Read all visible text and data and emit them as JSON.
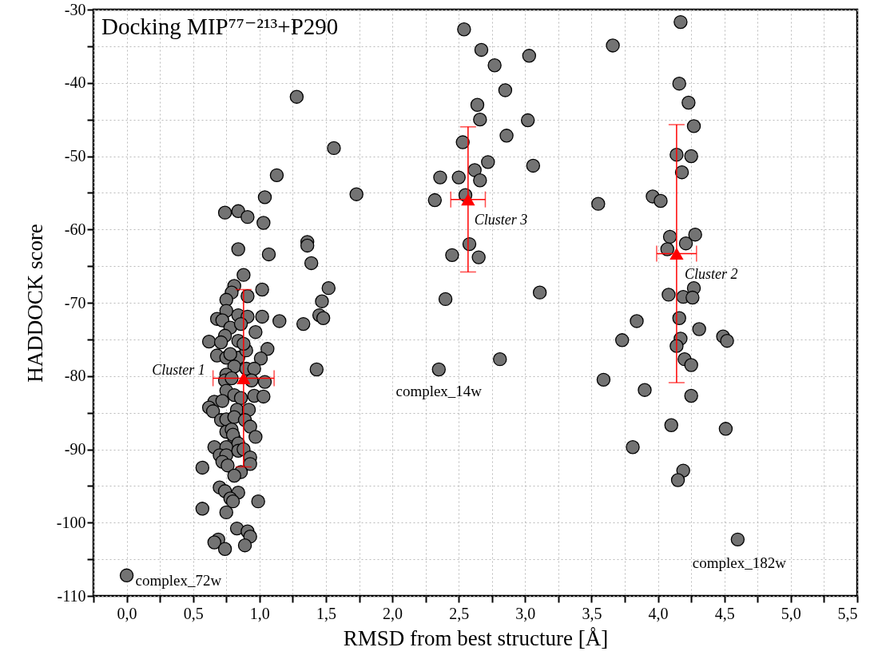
{
  "chart_data": {
    "type": "scatter",
    "title": "Docking MIP⁷⁷⁻²¹³+P290",
    "xlabel": "RMSD from best structure [Å]",
    "ylabel": "HADDOCK score",
    "xlim": [
      -0.25,
      5.5
    ],
    "xticks": [
      {
        "value": -0.25,
        "label": null
      },
      {
        "value": 0,
        "label": "0,0"
      },
      {
        "value": 0.25,
        "label": null
      },
      {
        "value": 0.5,
        "label": "0,5"
      },
      {
        "value": 0.75,
        "label": null
      },
      {
        "value": 1,
        "label": "1,0"
      },
      {
        "value": 1.25,
        "label": null
      },
      {
        "value": 1.5,
        "label": "1,5"
      },
      {
        "value": 1.75,
        "label": null
      },
      {
        "value": 2,
        "label": "2,0"
      },
      {
        "value": 2.25,
        "label": null
      },
      {
        "value": 2.5,
        "label": "2,5"
      },
      {
        "value": 2.75,
        "label": null
      },
      {
        "value": 3,
        "label": "3,0"
      },
      {
        "value": 3.25,
        "label": null
      },
      {
        "value": 3.5,
        "label": "3,5"
      },
      {
        "value": 3.75,
        "label": null
      },
      {
        "value": 4,
        "label": "4,0"
      },
      {
        "value": 4.25,
        "label": null
      },
      {
        "value": 4.5,
        "label": "4,5"
      },
      {
        "value": 4.75,
        "label": null
      },
      {
        "value": 5,
        "label": "5,0"
      },
      {
        "value": 5.25,
        "label": null
      },
      {
        "value": 5.5,
        "label": "5,5"
      }
    ],
    "ylim": [
      -110,
      -30
    ],
    "yticks": [
      -110,
      {
        "value": -105,
        "label": null
      },
      -100,
      {
        "value": -95,
        "label": null
      },
      -90,
      {
        "value": -85,
        "label": null
      },
      -80,
      {
        "value": -75,
        "label": null
      },
      -70,
      {
        "value": -65,
        "label": null
      },
      -60,
      {
        "value": -55,
        "label": null
      },
      -50,
      {
        "value": -45,
        "label": null
      },
      -40,
      {
        "value": -35,
        "label": null
      },
      -30
    ],
    "grid": true,
    "series": [
      {
        "marker": "circle",
        "color": "#737373",
        "x": [
          1.28,
          1.56,
          1.13,
          1.73,
          1.04,
          0.74,
          0.84,
          0.91,
          1.03,
          1.36,
          1.36,
          0.84,
          1.07,
          1.39,
          0.88,
          0.81,
          1.02,
          1.52,
          0.79,
          0.91,
          0.75,
          1.47,
          0.75,
          0.68,
          0.72,
          0.84,
          0.91,
          1.02,
          1.15,
          1.33,
          1.45,
          1.48,
          0.78,
          0.97,
          0.86,
          0.74,
          0.62,
          0.71,
          0.84,
          1.06,
          1.43,
          0.68,
          0.75,
          0.84,
          1.01,
          0.78,
          0.9,
          0.88,
          0.81,
          0.9,
          0.96,
          0.75,
          0.74,
          1.04,
          0.94,
          0.79,
          0.75,
          0.66,
          0.62,
          0.65,
          0.72,
          0.81,
          0.86,
          0.96,
          1.03,
          0.83,
          0.92,
          0.71,
          0.75,
          0.81,
          0.89,
          0.93,
          0.75,
          0.79,
          0.97,
          0.81,
          0.8,
          0.84,
          0.66,
          0.75,
          0.7,
          0.75,
          0.84,
          0.88,
          0.93,
          0.93,
          0.72,
          0.76,
          0.57,
          0.86,
          0.81,
          0.7,
          0.74,
          0.84,
          0.78,
          0.8,
          0.99,
          0.57,
          0.75,
          0.83,
          0.91,
          0.93,
          0.69,
          0.66,
          0.89,
          0.74,
          0.0,
          2.54,
          2.67,
          3.03,
          2.77,
          2.85,
          2.64,
          2.66,
          3.02,
          2.86,
          2.53,
          2.72,
          3.06,
          2.62,
          2.36,
          2.5,
          2.66,
          2.55,
          2.32,
          2.58,
          2.45,
          2.65,
          3.11,
          2.4,
          2.81,
          2.35,
          4.17,
          3.66,
          4.16,
          4.23,
          4.27,
          4.14,
          4.25,
          4.18,
          3.96,
          4.02,
          3.55,
          4.09,
          4.28,
          4.21,
          4.07,
          4.27,
          4.08,
          4.19,
          4.26,
          4.16,
          3.84,
          4.31,
          3.73,
          4.17,
          4.49,
          4.52,
          4.14,
          4.2,
          4.25,
          3.59,
          3.9,
          4.25,
          4.1,
          4.51,
          3.81,
          4.19,
          4.15,
          4.6
        ],
        "values": [
          -41.9,
          -48.9,
          -52.6,
          -55.2,
          -55.6,
          -57.7,
          -57.5,
          -58.3,
          -59.1,
          -61.7,
          -62.2,
          -62.7,
          -63.4,
          -64.6,
          -66.2,
          -67.7,
          -68.2,
          -68.0,
          -68.6,
          -69.1,
          -69.6,
          -69.8,
          -71.1,
          -72.2,
          -72.4,
          -71.7,
          -71.9,
          -71.9,
          -72.5,
          -72.9,
          -71.7,
          -72.1,
          -73.4,
          -74.0,
          -72.9,
          -74.5,
          -75.3,
          -75.4,
          -75.2,
          -76.3,
          -79.1,
          -77.2,
          -77.5,
          -77.5,
          -77.6,
          -77.0,
          -76.5,
          -75.6,
          -78.7,
          -79.0,
          -79.0,
          -79.8,
          -80.6,
          -80.8,
          -80.6,
          -80.3,
          -82.0,
          -83.5,
          -84.3,
          -84.8,
          -83.4,
          -82.6,
          -83.0,
          -82.7,
          -82.8,
          -84.6,
          -84.6,
          -86.0,
          -85.9,
          -85.6,
          -86.0,
          -86.9,
          -87.6,
          -87.3,
          -88.3,
          -88.6,
          -88.0,
          -89.2,
          -89.7,
          -89.7,
          -90.8,
          -90.8,
          -90.2,
          -90.0,
          -91.1,
          -92.0,
          -91.7,
          -92.2,
          -92.5,
          -93.1,
          -93.6,
          -95.2,
          -95.7,
          -95.9,
          -96.7,
          -97.1,
          -97.1,
          -98.1,
          -98.6,
          -100.8,
          -101.2,
          -101.9,
          -102.3,
          -102.7,
          -103.1,
          -103.6,
          -107.2,
          -32.7,
          -35.5,
          -36.3,
          -37.6,
          -41.0,
          -43.0,
          -45.0,
          -45.1,
          -47.2,
          -48.1,
          -50.8,
          -51.3,
          -51.9,
          -52.9,
          -52.9,
          -53.3,
          -55.3,
          -56.0,
          -62.0,
          -63.5,
          -63.8,
          -68.6,
          -69.5,
          -77.7,
          -79.1,
          -31.7,
          -34.9,
          -40.1,
          -42.7,
          -45.9,
          -49.8,
          -50.0,
          -52.2,
          -55.5,
          -56.1,
          -56.5,
          -61.0,
          -60.7,
          -61.9,
          -62.7,
          -68.0,
          -68.9,
          -69.2,
          -69.3,
          -72.1,
          -72.5,
          -73.6,
          -75.1,
          -74.9,
          -74.6,
          -75.2,
          -75.9,
          -77.7,
          -78.5,
          -80.5,
          -81.9,
          -82.7,
          -86.7,
          -87.2,
          -89.7,
          -92.9,
          -94.2,
          -102.3
        ]
      },
      {
        "marker": "triangle",
        "color": "#ff0000",
        "x": [
          0.88,
          2.57,
          4.14
        ],
        "values": [
          -80.3,
          -55.9,
          -63.3
        ],
        "errors": [
          12.1,
          9.9,
          17.6
        ],
        "xerrors": [
          0.23,
          0.13,
          0.15
        ]
      }
    ],
    "annotations": [
      {
        "text": "Cluster 1",
        "x": 0.88,
        "y": -80.3
      },
      {
        "text": "Cluster 3",
        "x": 2.57,
        "y": -55.9
      },
      {
        "text": "Cluster 2",
        "x": 4.14,
        "y": -63.3
      },
      {
        "text": "complex_72w",
        "x": 0.0,
        "y": -107.2
      },
      {
        "text": "complex_14w",
        "x": 2.35,
        "y": -79.1
      },
      {
        "text": "complex_182w",
        "x": 4.6,
        "y": -102.3
      }
    ]
  }
}
